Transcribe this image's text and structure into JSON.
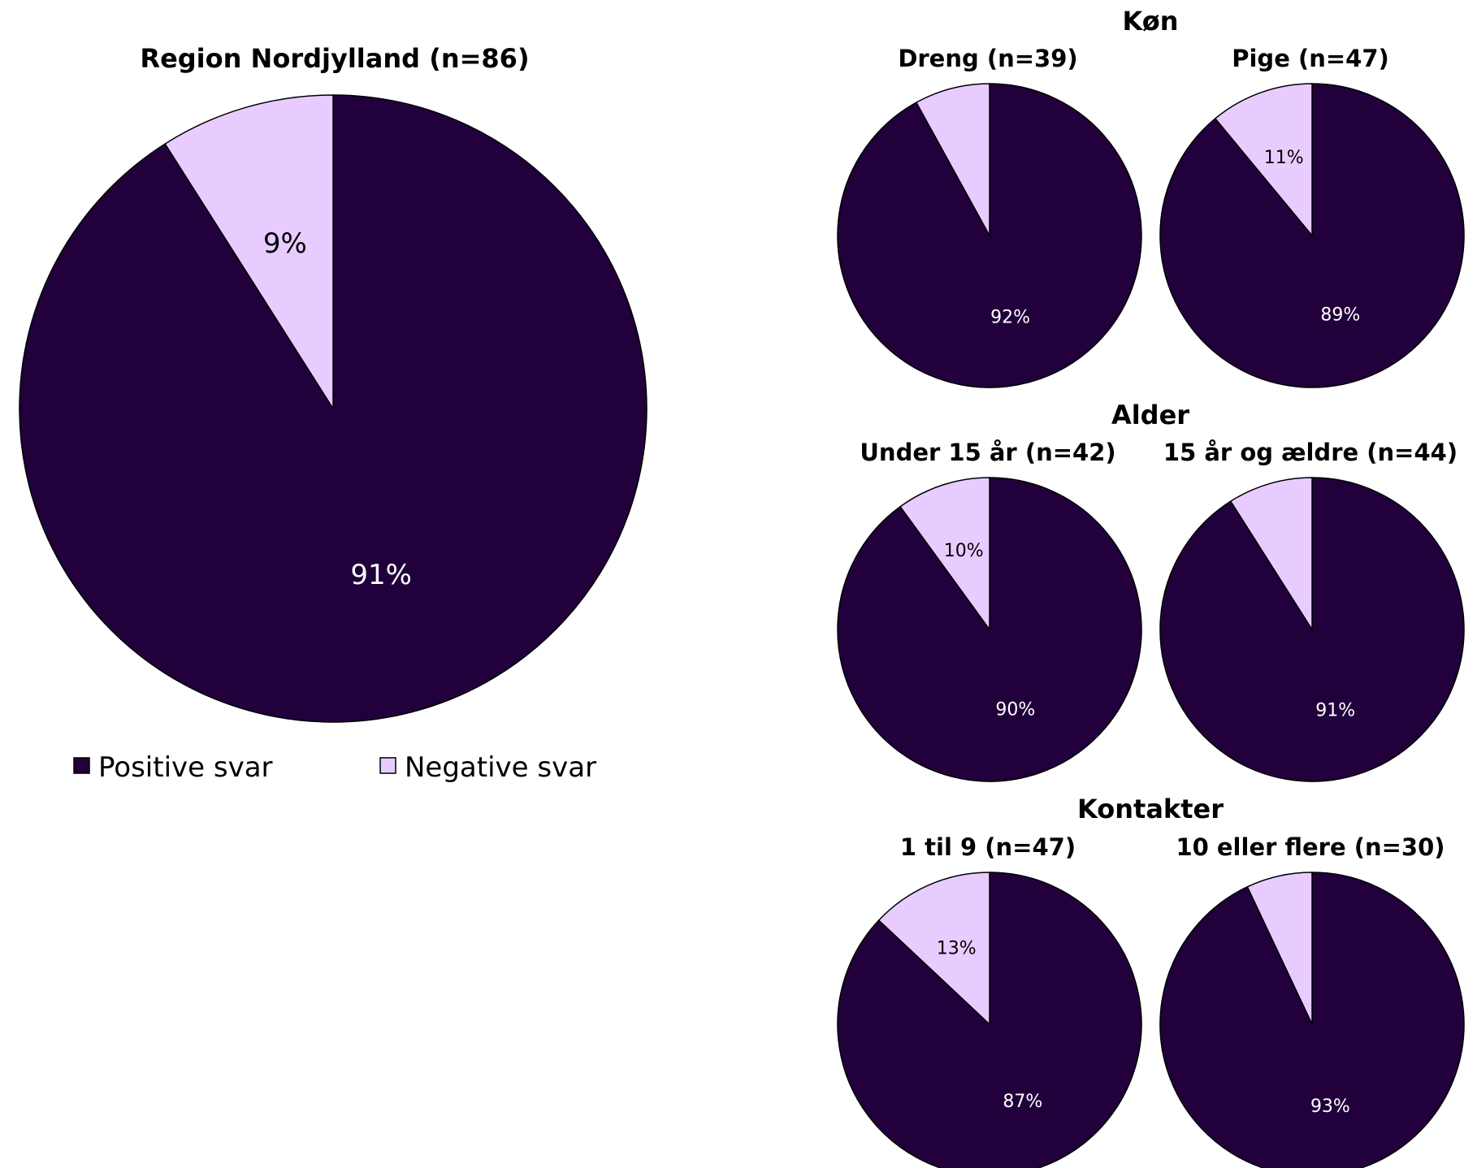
{
  "colors": {
    "positive": "#21003b",
    "negative": "#e9ccff",
    "outline": "#000000",
    "label_on_positive": "#ffffff",
    "label_on_negative": "#000000"
  },
  "legend": {
    "positive": "Positive svar",
    "negative": "Negative svar"
  },
  "groups": {
    "kon": "Køn",
    "alder": "Alder",
    "kontakter": "Kontakter"
  },
  "chart_data": [
    {
      "type": "pie",
      "title": "Region Nordjylland (n=86)",
      "categories": [
        "Positive svar",
        "Negative svar"
      ],
      "values": [
        91,
        9
      ],
      "labels": [
        "91%",
        "9%"
      ]
    },
    {
      "type": "pie",
      "group": "Køn",
      "title": "Dreng (n=39)",
      "categories": [
        "Positive svar",
        "Negative svar"
      ],
      "values": [
        92,
        8
      ],
      "labels": [
        "92%",
        ""
      ]
    },
    {
      "type": "pie",
      "group": "Køn",
      "title": "Pige (n=47)",
      "categories": [
        "Positive svar",
        "Negative svar"
      ],
      "values": [
        89,
        11
      ],
      "labels": [
        "89%",
        "11%"
      ]
    },
    {
      "type": "pie",
      "group": "Alder",
      "title": "Under 15 år (n=42)",
      "categories": [
        "Positive svar",
        "Negative svar"
      ],
      "values": [
        90,
        10
      ],
      "labels": [
        "90%",
        "10%"
      ]
    },
    {
      "type": "pie",
      "group": "Alder",
      "title": "15 år og ældre (n=44)",
      "categories": [
        "Positive svar",
        "Negative svar"
      ],
      "values": [
        91,
        9
      ],
      "labels": [
        "91%",
        ""
      ]
    },
    {
      "type": "pie",
      "group": "Kontakter",
      "title": "1 til 9 (n=47)",
      "categories": [
        "Positive svar",
        "Negative svar"
      ],
      "values": [
        87,
        13
      ],
      "labels": [
        "87%",
        "13%"
      ]
    },
    {
      "type": "pie",
      "group": "Kontakter",
      "title": "10 eller flere (n=30)",
      "categories": [
        "Positive svar",
        "Negative svar"
      ],
      "values": [
        93,
        7
      ],
      "labels": [
        "93%",
        ""
      ]
    }
  ]
}
